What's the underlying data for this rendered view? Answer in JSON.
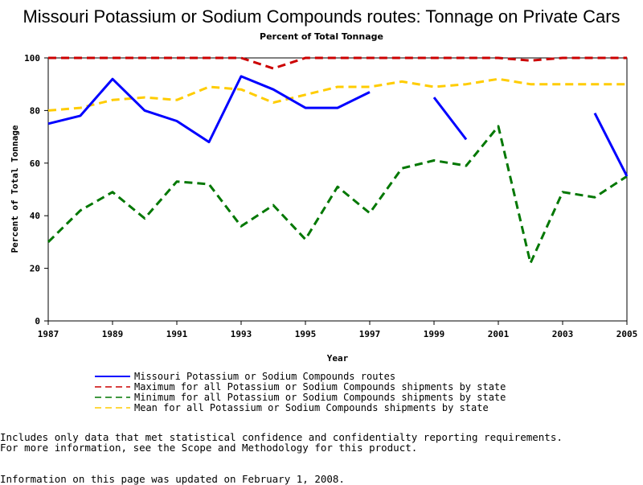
{
  "chart_data": {
    "type": "line",
    "title": "Missouri Potassium or Sodium Compounds routes: Tonnage on Private Cars",
    "subtitle": "Percent of Total Tonnage",
    "xlabel": "Year",
    "ylabel": "Percent of Total Tonnage",
    "xlim": [
      1987,
      2005
    ],
    "ylim": [
      0,
      100
    ],
    "x_ticks": [
      "1987",
      "1989",
      "1991",
      "1993",
      "1995",
      "1997",
      "1999",
      "2001",
      "2003",
      "2005"
    ],
    "y_ticks": [
      "0",
      "20",
      "40",
      "60",
      "80",
      "100"
    ],
    "grid": false,
    "legend_position": "bottom",
    "x": [
      1987,
      1988,
      1989,
      1990,
      1991,
      1992,
      1993,
      1994,
      1995,
      1996,
      1997,
      1998,
      1999,
      2000,
      2001,
      2002,
      2003,
      2004,
      2005
    ],
    "series": [
      {
        "name": "Missouri Potassium or Sodium Compounds routes",
        "color": "#0000ff",
        "dash": "solid",
        "values": [
          75,
          78,
          92,
          80,
          76,
          68,
          93,
          88,
          81,
          81,
          87,
          null,
          85,
          69,
          null,
          null,
          null,
          79,
          55
        ]
      },
      {
        "name": "Maximum for all Potassium or Sodium Compounds shipments by state",
        "color": "#cc0000",
        "dash": "dashed",
        "values": [
          100,
          100,
          100,
          100,
          100,
          100,
          100,
          96,
          100,
          100,
          100,
          100,
          100,
          100,
          100,
          99,
          100,
          100,
          100
        ]
      },
      {
        "name": "Minimum for all Potassium or Sodium Compounds shipments by state",
        "color": "#007700",
        "dash": "dashed",
        "values": [
          30,
          42,
          49,
          39,
          53,
          52,
          36,
          44,
          31,
          51,
          41,
          58,
          61,
          59,
          74,
          22,
          49,
          47,
          55
        ]
      },
      {
        "name": "Mean for all Potassium or Sodium Compounds shipments by state",
        "color": "#ffcc00",
        "dash": "dashed",
        "values": [
          80,
          81,
          84,
          85,
          84,
          89,
          88,
          83,
          86,
          89,
          89,
          91,
          89,
          90,
          92,
          90,
          90,
          90,
          90
        ]
      }
    ]
  },
  "footnotes": {
    "line1": "Includes only data that met statistical confidence and confidentialty reporting requirements.",
    "line2": "For more information, see the Scope and Methodology for this product.",
    "updated": "Information on this page was updated on February 1, 2008."
  }
}
